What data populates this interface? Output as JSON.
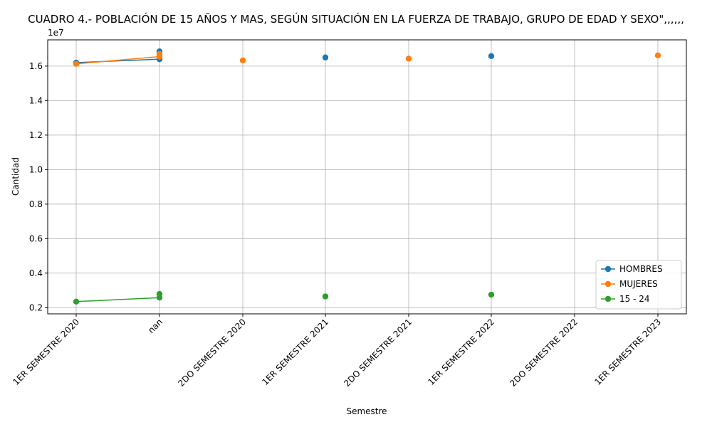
{
  "chart_data": {
    "type": "line",
    "title": "CUADRO 4.- POBLACIÓN DE 15 AÑOS Y MAS, SEGÚN SITUACIÓN EN LA FUERZA DE TRABAJO, GRUPO DE EDAD Y SEXO\",,,,,,",
    "xlabel": "Semestre",
    "ylabel": "Cantidad",
    "offset_label": "1e7",
    "categories": [
      "1ER SEMESTRE 2020",
      "nan",
      "2DO SEMESTRE 2020",
      "1ER SEMESTRE 2021",
      "2DO SEMESTRE 2021",
      "1ER SEMESTRE 2022",
      "2DO SEMESTRE 2022",
      "1ER SEMESTRE 2023"
    ],
    "y_ticks": [
      "0.2",
      "0.4",
      "0.6",
      "0.8",
      "1.0",
      "1.2",
      "1.4",
      "1.6"
    ],
    "ylim": [
      1640000,
      17520000
    ],
    "grid": true,
    "legend_position": "lower-right",
    "series": [
      {
        "name": "HOMBRES",
        "color": "#1f77b4",
        "points": [
          [
            "1ER SEMESTRE 2020",
            16200000
          ],
          [
            "nan",
            16400000
          ],
          [
            "nan",
            16850000
          ],
          [
            "1ER SEMESTRE 2021",
            16500000
          ],
          [
            "1ER SEMESTRE 2022",
            16580000
          ]
        ]
      },
      {
        "name": "MUJERES",
        "color": "#ff7f0e",
        "points": [
          [
            "1ER SEMESTRE 2020",
            16130000
          ],
          [
            "nan",
            16550000
          ],
          [
            "nan",
            16700000
          ],
          [
            "2DO SEMESTRE 2020",
            16330000
          ],
          [
            "2DO SEMESTRE 2021",
            16430000
          ],
          [
            "1ER SEMESTRE 2023",
            16620000
          ]
        ]
      },
      {
        "name": "15 - 24",
        "color": "#2ca02c",
        "points": [
          [
            "1ER SEMESTRE 2020",
            2350000
          ],
          [
            "nan",
            2580000
          ],
          [
            "nan",
            2790000
          ],
          [
            "1ER SEMESTRE 2021",
            2650000
          ],
          [
            "1ER SEMESTRE 2022",
            2750000
          ]
        ]
      }
    ]
  }
}
